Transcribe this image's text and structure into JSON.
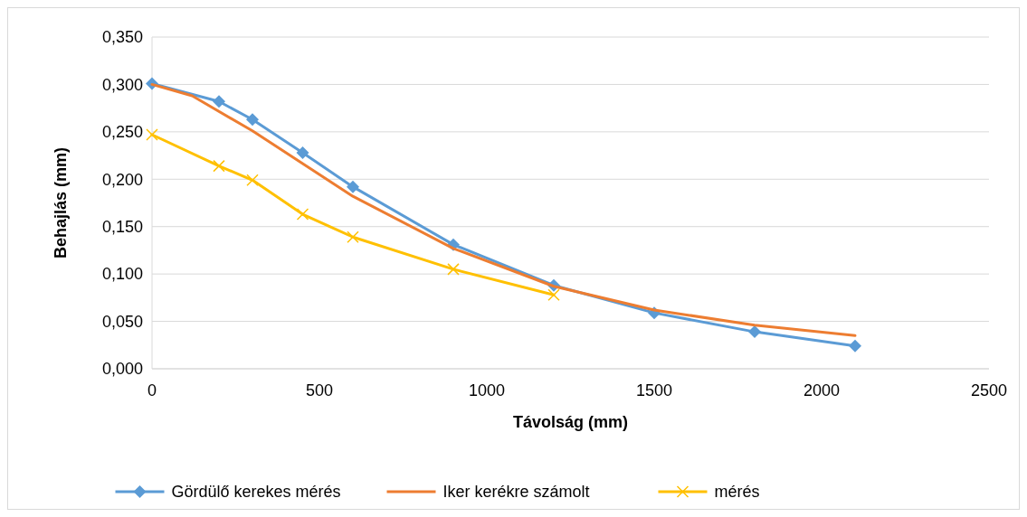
{
  "chart_data": {
    "type": "line",
    "xlabel": "Távolság (mm)",
    "ylabel": "Behajlás (mm)",
    "xlim": [
      0,
      2500
    ],
    "xticks": [
      0,
      500,
      1000,
      1500,
      2000,
      2500
    ],
    "ylim": [
      0,
      0.35
    ],
    "yticks": [
      {
        "value": 0,
        "label": "0,000"
      },
      {
        "value": 0.05,
        "label": "0,050"
      },
      {
        "value": 0.1,
        "label": "0,100"
      },
      {
        "value": 0.15,
        "label": "0,150"
      },
      {
        "value": 0.2,
        "label": "0,200"
      },
      {
        "value": 0.25,
        "label": "0,250"
      },
      {
        "value": 0.3,
        "label": "0,300"
      },
      {
        "value": 0.35,
        "label": "0,350"
      }
    ],
    "grid": "y",
    "legend": "bottom",
    "series": [
      {
        "name": "Gördülő kerekes mérés",
        "color": "#5b9bd5",
        "marker": "diamond",
        "x": [
          0,
          200,
          300,
          450,
          600,
          900,
          1200,
          1500,
          1800,
          2100
        ],
        "values": [
          0.301,
          0.282,
          0.263,
          0.228,
          0.192,
          0.131,
          0.088,
          0.059,
          0.039,
          0.024
        ]
      },
      {
        "name": "Iker kerékre számolt",
        "color": "#ed7d31",
        "marker": "none",
        "x": [
          0,
          120,
          300,
          600,
          900,
          1200,
          1500,
          1800,
          2100
        ],
        "values": [
          0.3,
          0.288,
          0.251,
          0.182,
          0.127,
          0.087,
          0.062,
          0.046,
          0.035
        ]
      },
      {
        "name": "mérés",
        "color": "#ffc000",
        "marker": "cross",
        "x": [
          0,
          200,
          300,
          450,
          600,
          900,
          1200
        ],
        "values": [
          0.247,
          0.214,
          0.199,
          0.163,
          0.139,
          0.105,
          0.078
        ]
      }
    ]
  }
}
